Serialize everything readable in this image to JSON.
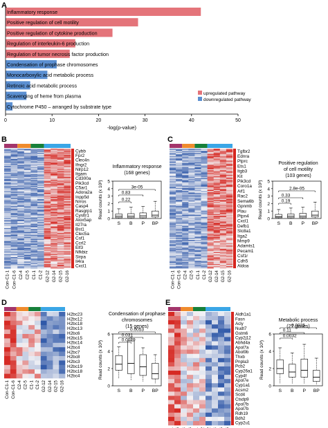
{
  "panel_letters": {
    "a": "A",
    "b": "B",
    "c": "C",
    "d": "D",
    "e": "E"
  },
  "colors": {
    "up": "#e4747a",
    "down": "#5b8fd1",
    "group_bar": [
      "#a3356b",
      "#ef8b2d",
      "#17803a",
      "#3aa6e6"
    ],
    "heat_low": "#2f58a8",
    "heat_mid": "#f3f3f6",
    "heat_high": "#d62a24",
    "gene_bar": "#d6261f"
  },
  "chart_data": [
    {
      "type": "bar",
      "orientation": "horizontal",
      "categories": [
        "Inflammatory response",
        "Positive regulation of cell motility",
        "Positive regulation of cytokine production",
        "Regulation of interleukin-6 production",
        "Regulation of tumor necrosis factor production",
        "Condensation of prophase chromosomes",
        "Monocarboxylic acid metabolic process",
        "Retinoic acid metabolic process",
        "Scavenging of heme from plasma",
        "Cytochrome P450 – arranged by substrate type"
      ],
      "values": [
        42,
        28.5,
        23,
        15,
        13.8,
        11,
        9,
        5.3,
        4.5,
        1.5
      ],
      "direction": [
        "up",
        "up",
        "up",
        "up",
        "up",
        "down",
        "down",
        "down",
        "down",
        "down"
      ],
      "xlabel": "-log(p-value)",
      "xticks": [
        "0",
        "10",
        "20",
        "30",
        "40",
        "50"
      ],
      "xlim": [
        0,
        50
      ],
      "legend": [
        "upregulated pathway",
        "downregulated pathway"
      ]
    },
    {
      "type": "box",
      "title_lines": [
        "Inflammatory response",
        "(168 genes)"
      ],
      "categories": [
        "S",
        "B",
        "P",
        "BP"
      ],
      "ylabel": "Read counts (x 10³)",
      "yticks": [
        "0",
        "1",
        "2",
        "3",
        "4",
        "5"
      ],
      "ylim": [
        0,
        5
      ],
      "pvalues": [
        "0.22",
        "0.83",
        "3e-05"
      ],
      "boxes": [
        {
          "q1": 0.1,
          "med": 0.3,
          "q3": 0.6,
          "wlo": 0,
          "whi": 1.3
        },
        {
          "q1": 0.1,
          "med": 0.3,
          "q3": 0.65,
          "wlo": 0,
          "whi": 1.5
        },
        {
          "q1": 0.1,
          "med": 0.35,
          "q3": 0.75,
          "wlo": 0,
          "whi": 1.6
        },
        {
          "q1": 0.2,
          "med": 0.45,
          "q3": 1.0,
          "wlo": 0,
          "whi": 2.3
        }
      ]
    },
    {
      "type": "box",
      "title_lines": [
        "Positive regulation",
        "of cell motility",
        "(103 genes)"
      ],
      "categories": [
        "S",
        "B",
        "P",
        "BP"
      ],
      "ylabel": "Read counts (x 10³)",
      "yticks": [
        "0",
        "1",
        "2",
        "3",
        "4",
        "5"
      ],
      "ylim": [
        0,
        5
      ],
      "pvalues": [
        "0.19",
        "0.33",
        "2.8e-05"
      ],
      "boxes": [
        {
          "q1": 0.1,
          "med": 0.25,
          "q3": 0.55,
          "wlo": 0,
          "whi": 1.2
        },
        {
          "q1": 0.1,
          "med": 0.3,
          "q3": 0.6,
          "wlo": 0,
          "whi": 1.4
        },
        {
          "q1": 0.1,
          "med": 0.3,
          "q3": 0.7,
          "wlo": 0,
          "whi": 1.5
        },
        {
          "q1": 0.2,
          "med": 0.45,
          "q3": 1.0,
          "wlo": 0,
          "whi": 2.2
        }
      ]
    },
    {
      "type": "box",
      "title_lines": [
        "Condensation of prophase",
        "chromosomes",
        "(15 genes)"
      ],
      "categories": [
        "S",
        "B",
        "P",
        "BP"
      ],
      "ylabel": "Read counts (x 10³)",
      "yticks": [
        "0",
        "2",
        "4",
        "6"
      ],
      "ylim": [
        0,
        6
      ],
      "pvalues": [
        "0.0029",
        "0.031",
        "0.0053"
      ],
      "boxes": [
        {
          "q1": 1.8,
          "med": 2.5,
          "q3": 3.5,
          "wlo": 0.8,
          "whi": 4.5
        },
        {
          "q1": 1.4,
          "med": 2.6,
          "q3": 5.2,
          "wlo": 0.6,
          "whi": 5.6
        },
        {
          "q1": 1.2,
          "med": 2.2,
          "q3": 3.6,
          "wlo": 0.5,
          "whi": 4.4
        },
        {
          "q1": 0.8,
          "med": 1.4,
          "q3": 2.6,
          "wlo": 0.3,
          "whi": 3.6
        }
      ]
    },
    {
      "type": "box",
      "title_lines": [
        "Metabolic process",
        "(27 genes)"
      ],
      "categories": [
        "S",
        "B",
        "P",
        "BP"
      ],
      "ylabel": "Read counts (x 10³)",
      "yticks": [
        "0",
        "2",
        "4",
        "6"
      ],
      "ylim": [
        0,
        6
      ],
      "pvalues": [
        "0.0032",
        "0.11",
        "0.0025"
      ],
      "boxes": [
        {
          "q1": 1.4,
          "med": 2.0,
          "q3": 3.0,
          "wlo": 0.3,
          "whi": 4.4
        },
        {
          "q1": 1.0,
          "med": 1.6,
          "q3": 2.5,
          "wlo": 0.2,
          "whi": 3.8
        },
        {
          "q1": 1.0,
          "med": 1.8,
          "q3": 3.1,
          "wlo": 0.2,
          "whi": 4.8
        },
        {
          "q1": 0.5,
          "med": 1.0,
          "q3": 1.8,
          "wlo": 0.1,
          "whi": 3.2
        }
      ]
    }
  ],
  "heatmaps": {
    "b": {
      "genes": [
        "Cybb",
        "Fpr2",
        "Clec4n",
        "Ifngr2",
        "Nlrp12",
        "Itgam",
        "Cd300a",
        "Pik3cd",
        "C5ar1",
        "Adora2a",
        "Inpp5d",
        "Nrros",
        "Casp4",
        "Rasgrp1",
        "Cysltr1",
        "Alox5ap",
        "Il27ra",
        "Bst1",
        "Clec5a",
        "Csf1",
        "Ccrl2",
        "Elf3",
        "Nfkbiz",
        "Sirpa",
        "Il4ra",
        "Cxcl1"
      ]
    },
    "c": {
      "genes": [
        "Tgfbr2",
        "Ednra",
        "Ptprc",
        "Ets1",
        "Itgb3",
        "Kit",
        "Pik3cd",
        "Coro1a",
        "Aif1",
        "Rac2",
        "Sema6b",
        "Gpnmb",
        "Plau",
        "Ptpn4",
        "Cxcl1",
        "Defb1",
        "Slc8a1",
        "Itga2",
        "Mmp9",
        "Adamts1",
        "Pecam1",
        "Csf1r",
        "Cdh5",
        "Aldoa"
      ]
    },
    "d": {
      "genes": [
        "H2bc23",
        "H2bc12",
        "H2bc18",
        "H2bc13",
        "H2bc6",
        "H2bc15",
        "H2bc14",
        "H2bc4",
        "H2bc7",
        "H2bc8",
        "H2bc3",
        "H2bc19",
        "H2bc18",
        "H2bc4"
      ]
    },
    "e": {
      "genes": [
        "Aldh1a1",
        "Fasn",
        "Acly",
        "Nudt7",
        "Gstm6",
        "Cyp2j12",
        "Abhd4a",
        "Apol7a",
        "Abol9b",
        "Thxb",
        "Pnpla3",
        "Pcb2",
        "Cyp26a1",
        "Cyp4f",
        "Apol7e",
        "Cyp1a1",
        "Acsm2",
        "Scd4",
        "Ctsdp9",
        "Apol7b",
        "Apol7b",
        "Rdh19",
        "Bdh2",
        "Cyp2u1"
      ]
    },
    "samples": [
      "Con-C1-1",
      "Con-C1-6",
      "C2-4",
      "C2-5",
      "C1-1",
      "C1-2",
      "G2-12",
      "G2-14",
      "G2-15",
      "G2-16"
    ]
  }
}
